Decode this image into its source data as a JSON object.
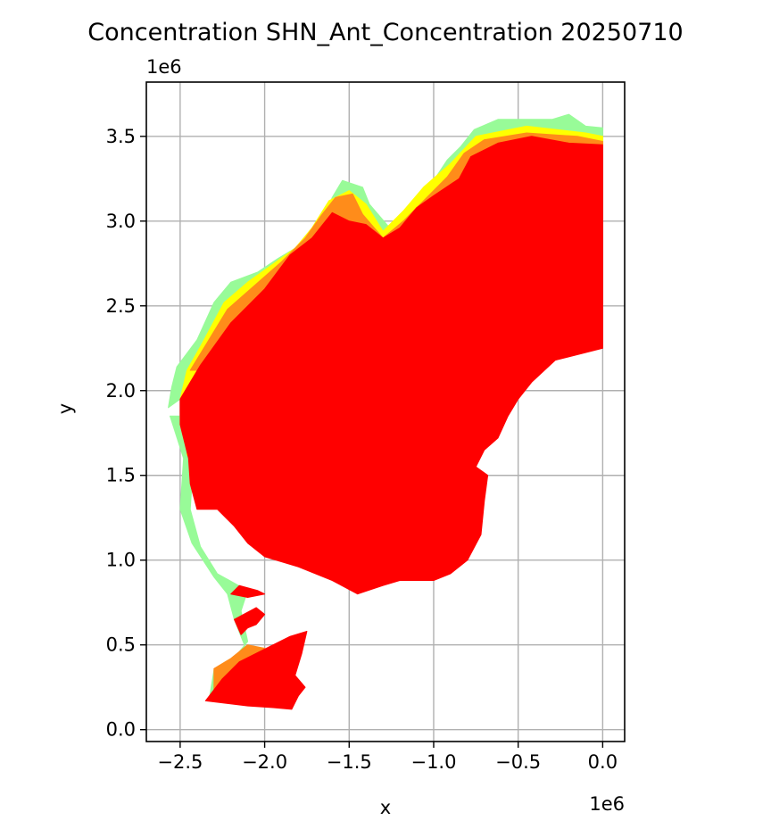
{
  "chart_data": {
    "type": "map",
    "title": "Concentration SHN_Ant_Concentration 20250710",
    "xlabel": "x",
    "ylabel": "y",
    "x_offset_label": "1e6",
    "y_offset_label": "1e6",
    "xlim": [
      -2.7,
      0.13
    ],
    "ylim": [
      -0.07,
      3.82
    ],
    "xticks": [
      -2.5,
      -2.0,
      -1.5,
      -1.0,
      -0.5,
      0.0
    ],
    "xtick_labels": [
      "−2.5",
      "−2.0",
      "−1.5",
      "−1.0",
      "−0.5",
      "0.0"
    ],
    "yticks": [
      0.0,
      0.5,
      1.0,
      1.5,
      2.0,
      2.5,
      3.0,
      3.5
    ],
    "ytick_labels": [
      "0.0",
      "0.5",
      "1.0",
      "1.5",
      "2.0",
      "2.5",
      "3.0",
      "3.5"
    ],
    "grid": true,
    "legend": "none",
    "colors": {
      "highest": "#ff0000",
      "high": "#ff8c1a",
      "medium": "#ffff00",
      "low": "#98fb98",
      "grid": "#b0b0b0"
    },
    "regions": [
      {
        "level": "low",
        "outline": [
          [
            -2.57,
            1.9
          ],
          [
            -2.55,
            2.02
          ],
          [
            -2.52,
            2.14
          ],
          [
            -2.4,
            2.3
          ],
          [
            -2.3,
            2.52
          ],
          [
            -2.2,
            2.64
          ],
          [
            -2.04,
            2.7
          ],
          [
            -1.92,
            2.78
          ],
          [
            -1.82,
            2.84
          ],
          [
            -1.75,
            2.92
          ],
          [
            -1.64,
            3.04
          ],
          [
            -1.6,
            3.14
          ],
          [
            -1.54,
            3.24
          ],
          [
            -1.42,
            3.2
          ],
          [
            -1.38,
            3.1
          ],
          [
            -1.26,
            2.96
          ],
          [
            -1.16,
            3.04
          ],
          [
            -1.04,
            3.18
          ],
          [
            -0.92,
            3.36
          ],
          [
            -0.84,
            3.44
          ],
          [
            -0.76,
            3.54
          ],
          [
            -0.62,
            3.6
          ],
          [
            -0.47,
            3.6
          ],
          [
            -0.3,
            3.6
          ],
          [
            -0.2,
            3.63
          ],
          [
            -0.1,
            3.56
          ],
          [
            0.0,
            3.55
          ],
          [
            0.0,
            3.44
          ],
          [
            -0.55,
            3.48
          ],
          [
            -0.8,
            3.3
          ],
          [
            -1.3,
            2.88
          ],
          [
            -1.6,
            3.1
          ],
          [
            -2.4,
            2.15
          ],
          [
            -2.5,
            1.95
          ]
        ]
      },
      {
        "level": "low",
        "outline": [
          [
            -2.56,
            1.85
          ],
          [
            -2.48,
            1.6
          ],
          [
            -2.5,
            1.3
          ],
          [
            -2.43,
            1.1
          ],
          [
            -2.3,
            0.9
          ],
          [
            -2.22,
            0.8
          ],
          [
            -2.18,
            0.65
          ],
          [
            -2.1,
            0.45
          ],
          [
            -2.2,
            0.4
          ],
          [
            -2.3,
            0.35
          ],
          [
            -2.33,
            0.17
          ],
          [
            -2.28,
            0.17
          ],
          [
            -2.25,
            0.34
          ],
          [
            -2.1,
            0.52
          ],
          [
            -2.14,
            0.7
          ],
          [
            -2.1,
            0.82
          ],
          [
            -2.28,
            0.92
          ],
          [
            -2.38,
            1.08
          ],
          [
            -2.44,
            1.3
          ],
          [
            -2.42,
            1.6
          ],
          [
            -2.49,
            1.85
          ]
        ]
      },
      {
        "level": "medium",
        "outline": [
          [
            -2.5,
            1.95
          ],
          [
            -2.46,
            2.12
          ],
          [
            -2.38,
            2.26
          ],
          [
            -2.24,
            2.52
          ],
          [
            -2.1,
            2.64
          ],
          [
            -1.96,
            2.74
          ],
          [
            -1.82,
            2.84
          ],
          [
            -1.72,
            2.96
          ],
          [
            -1.62,
            3.12
          ],
          [
            -1.5,
            3.18
          ],
          [
            -1.4,
            3.1
          ],
          [
            -1.3,
            2.94
          ],
          [
            -1.18,
            3.06
          ],
          [
            -1.06,
            3.2
          ],
          [
            -0.9,
            3.34
          ],
          [
            -0.75,
            3.5
          ],
          [
            -0.45,
            3.56
          ],
          [
            -0.1,
            3.52
          ],
          [
            0.0,
            3.5
          ],
          [
            0.0,
            3.44
          ],
          [
            -0.55,
            3.46
          ],
          [
            -0.85,
            3.26
          ],
          [
            -1.3,
            2.88
          ],
          [
            -1.6,
            3.08
          ],
          [
            -2.38,
            2.14
          ],
          [
            -2.44,
            1.9
          ],
          [
            -2.46,
            1.62
          ],
          [
            -2.42,
            1.6
          ]
        ]
      },
      {
        "level": "high",
        "outline": [
          [
            -2.44,
            2.12
          ],
          [
            -2.33,
            2.3
          ],
          [
            -2.22,
            2.48
          ],
          [
            -2.06,
            2.62
          ],
          [
            -1.9,
            2.76
          ],
          [
            -1.76,
            2.9
          ],
          [
            -1.66,
            3.04
          ],
          [
            -1.58,
            3.14
          ],
          [
            -1.48,
            3.16
          ],
          [
            -1.42,
            3.04
          ],
          [
            -1.3,
            2.9
          ],
          [
            -1.18,
            3.0
          ],
          [
            -1.04,
            3.14
          ],
          [
            -0.92,
            3.26
          ],
          [
            -0.82,
            3.4
          ],
          [
            -0.7,
            3.48
          ],
          [
            -0.45,
            3.52
          ],
          [
            -0.15,
            3.5
          ],
          [
            0.0,
            3.47
          ],
          [
            0.0,
            3.44
          ],
          [
            -0.55,
            3.44
          ],
          [
            -0.85,
            3.24
          ],
          [
            -1.3,
            2.86
          ],
          [
            -1.6,
            3.05
          ],
          [
            -2.36,
            2.12
          ]
        ]
      },
      {
        "level": "high",
        "outline": [
          [
            -2.3,
            0.36
          ],
          [
            -2.2,
            0.42
          ],
          [
            -2.1,
            0.5
          ],
          [
            -2.0,
            0.48
          ],
          [
            -1.94,
            0.4
          ],
          [
            -2.06,
            0.3
          ],
          [
            -2.2,
            0.28
          ],
          [
            -2.3,
            0.2
          ]
        ]
      },
      {
        "level": "highest",
        "outline": [
          [
            -2.5,
            1.95
          ],
          [
            -2.38,
            2.15
          ],
          [
            -2.2,
            2.4
          ],
          [
            -2.0,
            2.6
          ],
          [
            -1.85,
            2.8
          ],
          [
            -1.72,
            2.9
          ],
          [
            -1.6,
            3.05
          ],
          [
            -1.5,
            3.0
          ],
          [
            -1.4,
            2.98
          ],
          [
            -1.3,
            2.9
          ],
          [
            -1.2,
            2.96
          ],
          [
            -1.1,
            3.08
          ],
          [
            -1.0,
            3.15
          ],
          [
            -0.85,
            3.25
          ],
          [
            -0.78,
            3.38
          ],
          [
            -0.62,
            3.46
          ],
          [
            -0.42,
            3.5
          ],
          [
            -0.2,
            3.46
          ],
          [
            0.0,
            3.45
          ],
          [
            0.0,
            2.25
          ],
          [
            -0.12,
            2.22
          ],
          [
            -0.28,
            2.18
          ],
          [
            -0.42,
            2.05
          ],
          [
            -0.5,
            1.95
          ],
          [
            -0.56,
            1.85
          ],
          [
            -0.62,
            1.72
          ],
          [
            -0.7,
            1.65
          ],
          [
            -0.75,
            1.55
          ],
          [
            -0.68,
            1.5
          ],
          [
            -0.7,
            1.35
          ],
          [
            -0.72,
            1.15
          ],
          [
            -0.8,
            1.0
          ],
          [
            -0.9,
            0.92
          ],
          [
            -1.0,
            0.88
          ],
          [
            -1.2,
            0.88
          ],
          [
            -1.3,
            0.85
          ],
          [
            -1.45,
            0.8
          ],
          [
            -1.6,
            0.88
          ],
          [
            -1.8,
            0.96
          ],
          [
            -2.0,
            1.02
          ],
          [
            -2.1,
            1.1
          ],
          [
            -2.18,
            1.2
          ],
          [
            -2.28,
            1.3
          ],
          [
            -2.4,
            1.3
          ],
          [
            -2.44,
            1.45
          ],
          [
            -2.45,
            1.6
          ],
          [
            -2.5,
            1.8
          ]
        ]
      },
      {
        "level": "highest",
        "outline": [
          [
            -2.35,
            0.17
          ],
          [
            -2.25,
            0.3
          ],
          [
            -2.15,
            0.4
          ],
          [
            -2.05,
            0.45
          ],
          [
            -1.95,
            0.5
          ],
          [
            -1.85,
            0.55
          ],
          [
            -1.75,
            0.58
          ],
          [
            -1.78,
            0.45
          ],
          [
            -1.82,
            0.32
          ],
          [
            -1.76,
            0.25
          ],
          [
            -1.8,
            0.2
          ],
          [
            -1.84,
            0.12
          ],
          [
            -1.95,
            0.13
          ],
          [
            -2.1,
            0.14
          ]
        ]
      },
      {
        "level": "highest",
        "outline": [
          [
            -2.18,
            0.65
          ],
          [
            -2.05,
            0.72
          ],
          [
            -2.0,
            0.68
          ],
          [
            -2.05,
            0.62
          ],
          [
            -2.1,
            0.6
          ],
          [
            -2.14,
            0.56
          ]
        ]
      },
      {
        "level": "highest",
        "outline": [
          [
            -2.15,
            0.85
          ],
          [
            -2.04,
            0.82
          ],
          [
            -2.0,
            0.8
          ],
          [
            -2.1,
            0.78
          ],
          [
            -2.2,
            0.8
          ]
        ]
      }
    ]
  }
}
